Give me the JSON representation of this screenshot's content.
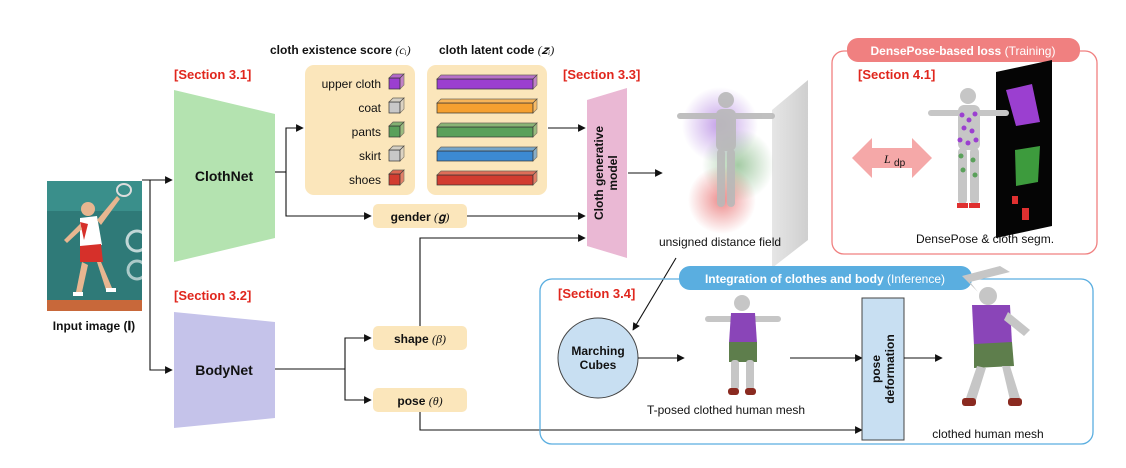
{
  "input": {
    "caption": "Input image (𝐈)"
  },
  "section_labels": {
    "s31": "[Section 3.1]",
    "s32": "[Section 3.2]",
    "s33": "[Section 3.3]",
    "s34": "[Section 3.4]",
    "s41": "[Section 4.1]"
  },
  "networks": {
    "clothnet": "ClothNet",
    "bodynet": "BodyNet"
  },
  "cloth_panel": {
    "score_title": "cloth existence score",
    "score_symbol": "(cᵢ)",
    "latent_title": "cloth latent code",
    "latent_symbol": "(𝒛ᵢ)",
    "items": [
      {
        "label": "upper cloth",
        "score_color": "#9b3fd0",
        "latent_color": "#9b3fd0"
      },
      {
        "label": "coat",
        "score_color": "#c8c8c8",
        "latent_color": "#f5a030"
      },
      {
        "label": "pants",
        "score_color": "#5aa05a",
        "latent_color": "#5aa05a"
      },
      {
        "label": "skirt",
        "score_color": "#c8c8c8",
        "latent_color": "#3c8ad2"
      },
      {
        "label": "shoes",
        "score_color": "#d23c30",
        "latent_color": "#d23c30"
      }
    ]
  },
  "params": {
    "gender_label": "gender",
    "gender_symbol": "(𝐠)",
    "shape_label": "shape",
    "shape_symbol": "(β)",
    "pose_label": "pose",
    "pose_symbol": "(θ)"
  },
  "generative_model": {
    "line1": "Cloth generative",
    "line2": "model"
  },
  "udf": {
    "caption": "unsigned distance field"
  },
  "densepose_panel": {
    "title": "DensePose-based loss",
    "title_suffix": "(Training)",
    "loss_symbol": "L",
    "loss_subscript": "dp",
    "caption": "DensePose & cloth segm."
  },
  "integration_panel": {
    "title": "Integration of clothes and body",
    "title_suffix": "(Inference)",
    "marching_line1": "Marching",
    "marching_line2": "Cubes",
    "tpose_caption": "T-posed clothed human mesh",
    "pose_def_line1": "pose",
    "pose_def_line2": "deformation",
    "final_caption": "clothed human mesh"
  },
  "colors": {
    "clothnet_fill": "#b4e3b0",
    "bodynet_fill": "#c5c3ea",
    "panel_fill": "#fbe6bb",
    "generative_fill": "#eab8d4",
    "densepose_accent": "#f08080",
    "integration_accent": "#5aaee0",
    "section_red": "#e0261d"
  }
}
